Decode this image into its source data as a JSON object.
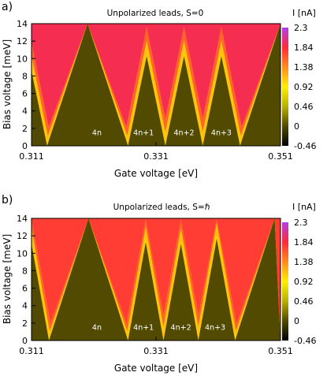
{
  "chart_data": [
    {
      "type": "heatmap",
      "panel_label": "a)",
      "title": "Unpolarized leads, S=0",
      "xlabel": "Gate voltage [eV]",
      "ylabel": "Bias voltage [meV]",
      "xlim": [
        0.311,
        0.351
      ],
      "ylim": [
        0,
        14
      ],
      "x_ticks": [
        "0.311",
        "0.331",
        "0.351"
      ],
      "x_tick_values": [
        0.311,
        0.331,
        0.351
      ],
      "y_ticks": [
        "0",
        "2",
        "4",
        "6",
        "8",
        "10",
        "12",
        "14"
      ],
      "colorbar": {
        "label": "I [nA]",
        "range": [
          -0.46,
          2.3
        ],
        "ticks": [
          "2.3",
          "1.84",
          "1.38",
          "0.92",
          "0.46",
          "0",
          "-0.46"
        ],
        "tick_values": [
          2.3,
          1.84,
          1.38,
          0.92,
          0.46,
          0,
          -0.46
        ]
      },
      "region_labels": [
        {
          "text": "4n",
          "x": 0.3215,
          "y": 1.2
        },
        {
          "text": "4n+1",
          "x": 0.329,
          "y": 1.2
        },
        {
          "text": "4n+2",
          "x": 0.3355,
          "y": 1.2
        },
        {
          "text": "4n+3",
          "x": 0.3415,
          "y": 1.2
        }
      ],
      "degeneracy_points": [
        0.3135,
        0.3265,
        0.3325,
        0.3385,
        0.3445
      ],
      "diamond_height": 10.5,
      "background_current": 1.9
    },
    {
      "type": "heatmap",
      "panel_label": "b)",
      "title": "Unpolarized leads, S=ℏ",
      "xlabel": "Gate voltage [eV]",
      "ylabel": "Bias voltage [meV]",
      "xlim": [
        0.311,
        0.351
      ],
      "ylim": [
        0,
        14
      ],
      "x_ticks": [
        "0.311",
        "0.331",
        "0.351"
      ],
      "x_tick_values": [
        0.311,
        0.331,
        0.351
      ],
      "y_ticks": [
        "0",
        "2",
        "4",
        "6",
        "8",
        "10",
        "12",
        "14"
      ],
      "colorbar": {
        "label": "I [nA]",
        "range": [
          -0.46,
          2.3
        ],
        "ticks": [
          "2.3",
          "1.84",
          "1.38",
          "0.92",
          "0.46",
          "0",
          "-0.46"
        ],
        "tick_values": [
          2.3,
          1.84,
          1.38,
          0.92,
          0.46,
          0,
          -0.46
        ]
      },
      "region_labels": [
        {
          "text": "4n",
          "x": 0.3215,
          "y": 1.2
        },
        {
          "text": "4n+1",
          "x": 0.329,
          "y": 1.2
        },
        {
          "text": "4n+2",
          "x": 0.335,
          "y": 1.2
        },
        {
          "text": "4n+3",
          "x": 0.3405,
          "y": 1.2
        }
      ],
      "degeneracy_points": [
        0.3138,
        0.3265,
        0.3322,
        0.3378,
        0.3437
      ],
      "diamond_height": 11.5,
      "background_current": 1.75
    }
  ]
}
